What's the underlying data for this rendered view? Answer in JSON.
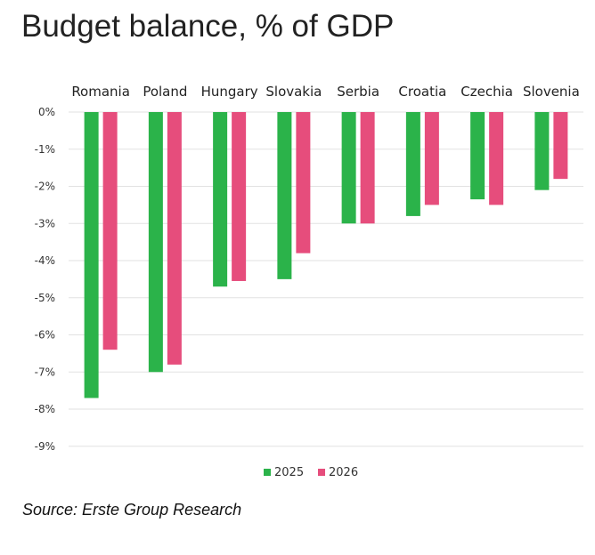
{
  "title": "Budget balance, % of GDP",
  "source": "Source: Erste Group Research",
  "colors": {
    "s2025": "#2bb34a",
    "s2026": "#e64d7c",
    "grid": "#e2e2e2",
    "text": "#333333"
  },
  "chart_data": {
    "type": "bar",
    "title": "Budget balance, % of GDP",
    "categories": [
      "Romania",
      "Poland",
      "Hungary",
      "Slovakia",
      "Serbia",
      "Croatia",
      "Czechia",
      "Slovenia"
    ],
    "series": [
      {
        "name": "2025",
        "values": [
          -7.7,
          -7.0,
          -4.7,
          -4.5,
          -3.0,
          -2.8,
          -2.35,
          -2.1
        ]
      },
      {
        "name": "2026",
        "values": [
          -6.4,
          -6.8,
          -4.55,
          -3.8,
          -3.0,
          -2.5,
          -2.5,
          -1.8
        ]
      }
    ],
    "yticks": [
      "0%",
      "-1%",
      "-2%",
      "-3%",
      "-4%",
      "-5%",
      "-6%",
      "-7%",
      "-8%",
      "-9%"
    ],
    "ylim": [
      -9,
      0
    ],
    "grid": true,
    "legend_position": "bottom",
    "category_labels_position": "top"
  }
}
